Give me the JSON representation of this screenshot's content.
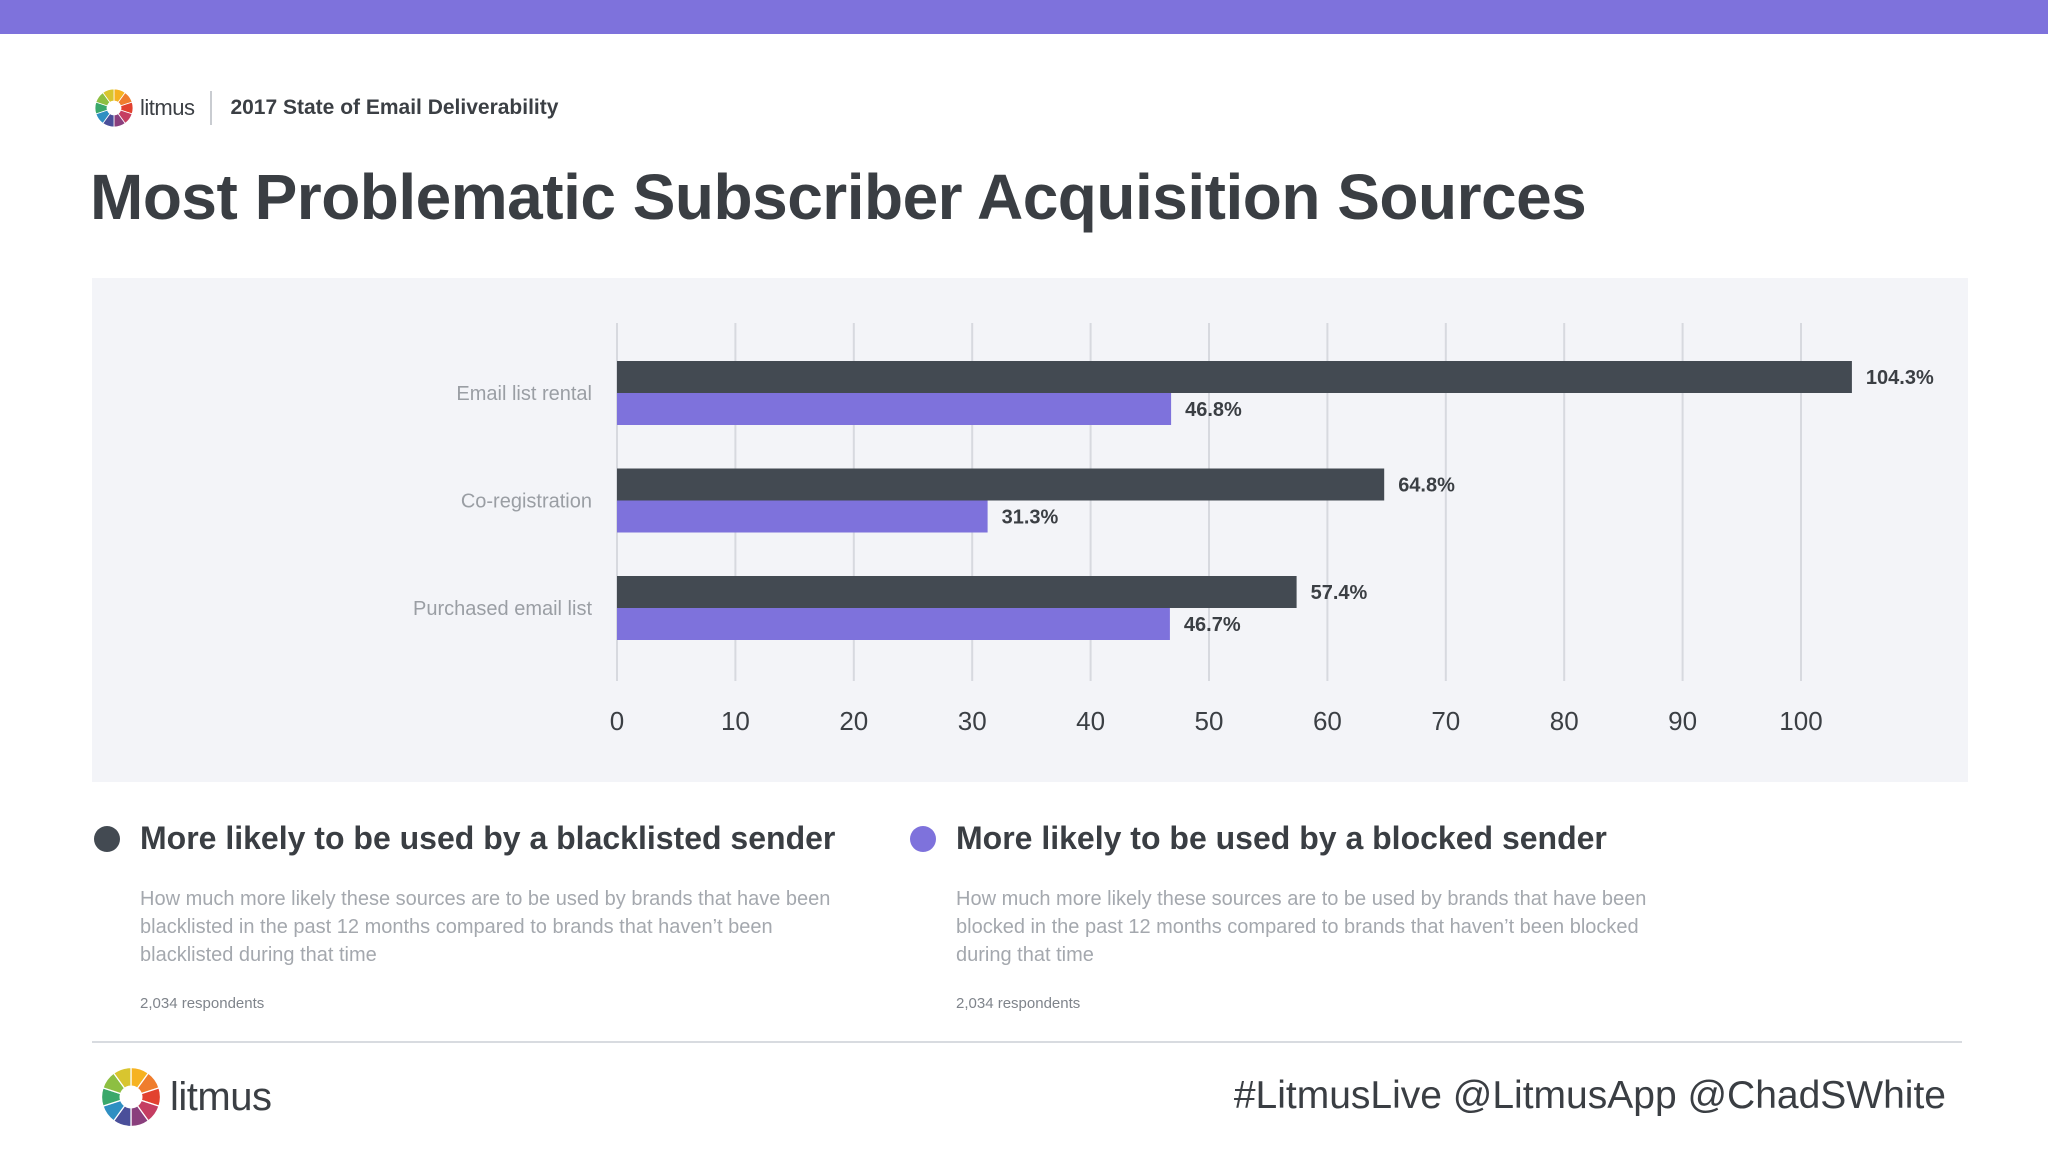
{
  "header": {
    "brand": "litmus",
    "report": "2017 State of Email Deliverability"
  },
  "page": {
    "title": "Most Problematic Subscriber Acquisition Sources"
  },
  "colors": {
    "top_bar": "#7e72dc",
    "blacklisted": "#434a52",
    "blocked": "#7e72dc",
    "panel": "#f3f4f8",
    "grid": "#d7d9df",
    "logo_segments": [
      "#f6b221",
      "#ef7d2d",
      "#e2412f",
      "#c53e62",
      "#8a3f7d",
      "#4a4f9a",
      "#2f8fc2",
      "#3aa86b",
      "#8dbf42",
      "#d8c52f"
    ]
  },
  "chart_data": {
    "type": "bar",
    "orientation": "horizontal",
    "categories": [
      "Email list rental",
      "Co-registration",
      "Purchased email list"
    ],
    "series": [
      {
        "name": "More likely to be used by a blacklisted sender",
        "values": [
          104.3,
          64.8,
          57.4
        ],
        "labels": [
          "104.3%",
          "64.8%",
          "57.4%"
        ]
      },
      {
        "name": "More likely to be used by a blocked sender",
        "values": [
          46.8,
          31.3,
          46.7
        ],
        "labels": [
          "46.8%",
          "31.3%",
          "46.7%"
        ]
      }
    ],
    "xlim": [
      0,
      100
    ],
    "xticks": [
      0,
      10,
      20,
      30,
      40,
      50,
      60,
      70,
      80,
      90,
      100
    ],
    "grid": true,
    "title": "Most Problematic Subscriber Acquisition Sources",
    "xlabel": "",
    "ylabel": ""
  },
  "legend": {
    "blacklisted": {
      "title": "More likely to be used by a blacklisted sender",
      "description": "How much more likely these sources are to be used by brands that have been blacklisted in the past 12 months compared to brands that haven’t been blacklisted during that time",
      "respondents": "2,034 respondents"
    },
    "blocked": {
      "title": "More likely to be used by a blocked sender",
      "description": "How much more likely these sources are to be used by brands that have been blocked in the past 12 months compared to brands that haven’t been blocked during that time",
      "respondents": "2,034 respondents"
    }
  },
  "footer": {
    "brand": "litmus",
    "social": "#LitmusLive @LitmusApp @ChadSWhite"
  }
}
